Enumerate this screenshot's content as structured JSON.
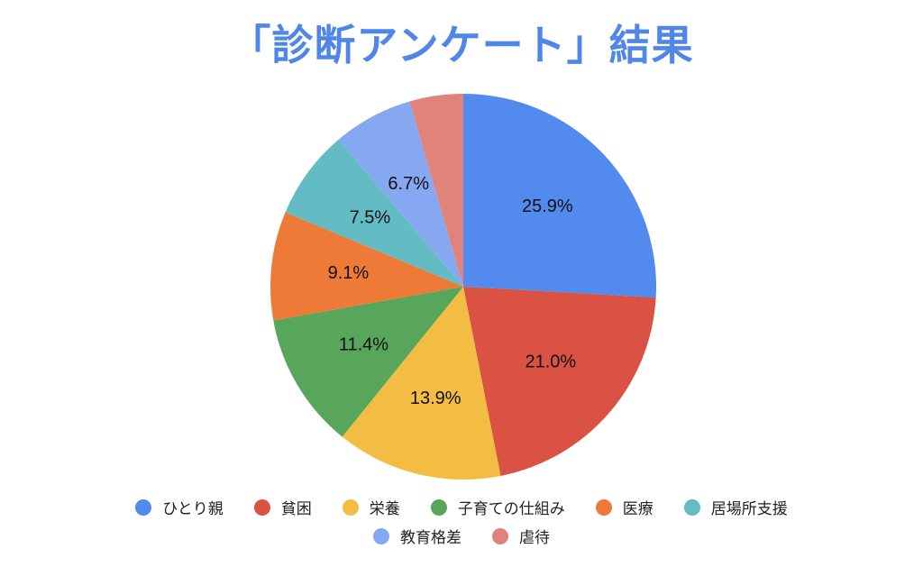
{
  "chart_data": {
    "type": "pie",
    "title": "「診断アンケート」結果",
    "categories": [
      "ひとり親",
      "貧困",
      "栄養",
      "子育ての仕組み",
      "医療",
      "居場所支援",
      "教育格差",
      "虐待"
    ],
    "values": [
      25.9,
      21.0,
      13.9,
      11.4,
      9.1,
      7.5,
      6.7,
      4.5
    ],
    "value_labels": [
      "25.9%",
      "21.0%",
      "13.9%",
      "11.4%",
      "9.1%",
      "7.5%",
      "6.7%",
      ""
    ],
    "colors": [
      "#528aed",
      "#d95244",
      "#f2bd42",
      "#58a55c",
      "#ed7a36",
      "#63bcc4",
      "#86a8f1",
      "#e0837a"
    ],
    "legend_position": "bottom",
    "start_angle": "12 o'clock",
    "direction": "clockwise"
  }
}
